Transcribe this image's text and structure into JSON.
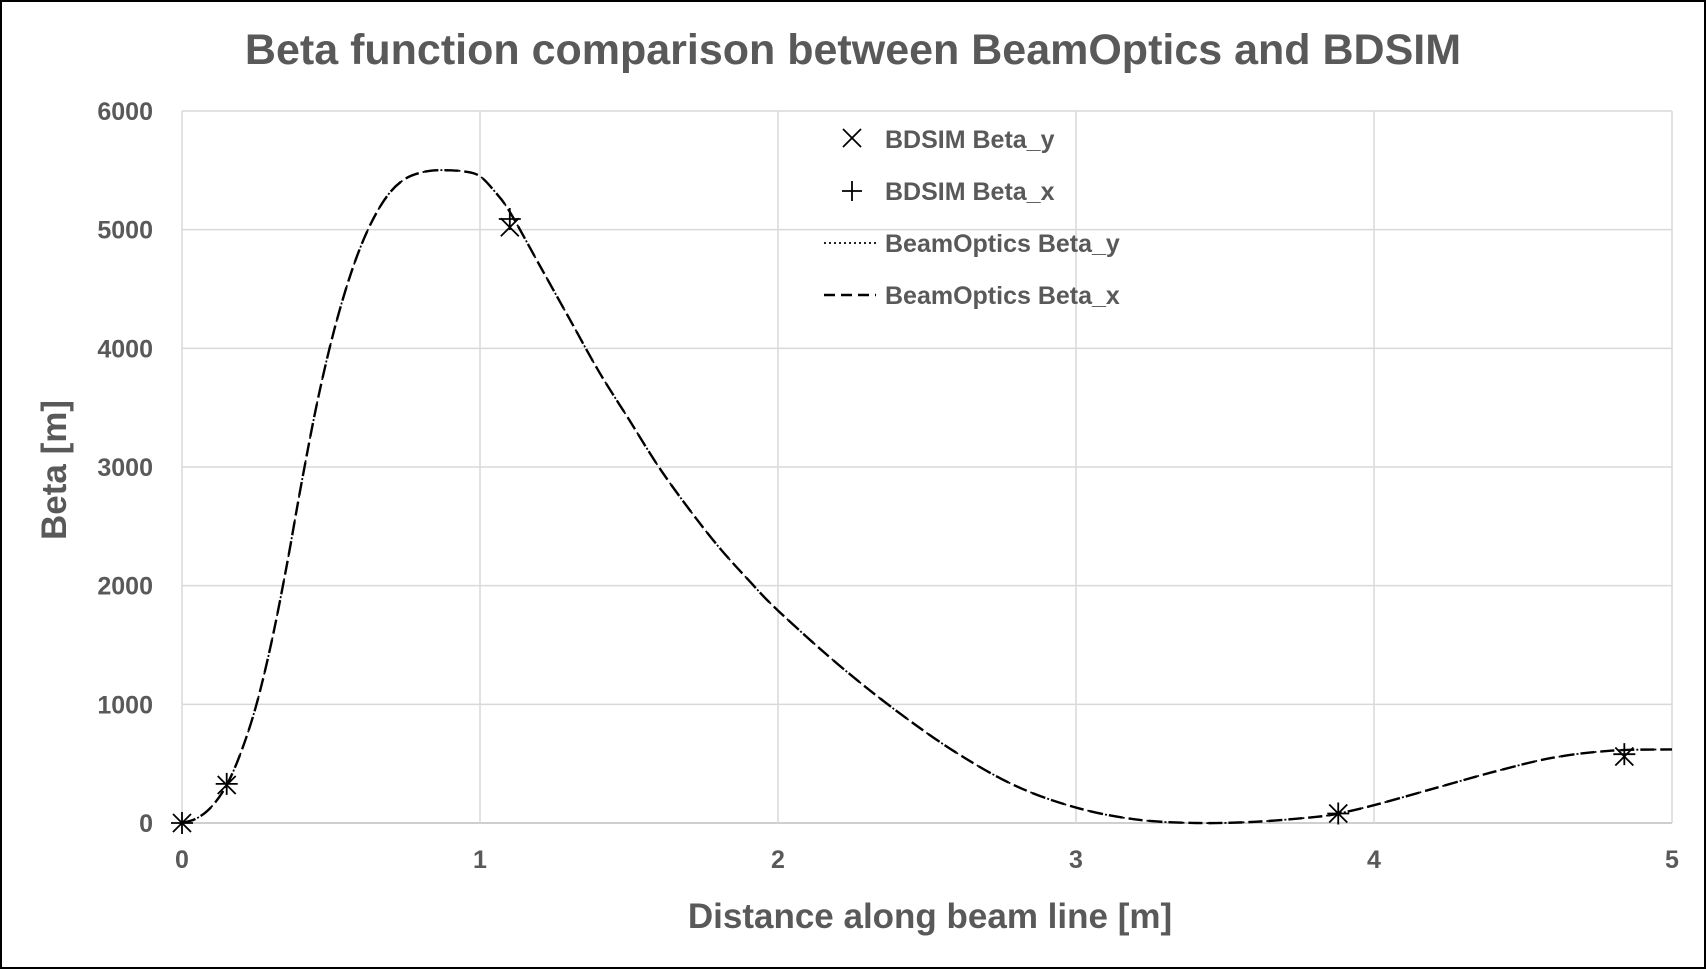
{
  "chart_data": {
    "type": "line",
    "title": "Beta function comparison between BeamOptics and BDSIM",
    "xlabel": "Distance along beam line [m]",
    "ylabel": "Beta [m]",
    "xlim": [
      0,
      5
    ],
    "ylim": [
      0,
      6000
    ],
    "x_ticks": [
      "0",
      "1",
      "2",
      "3",
      "4",
      "5"
    ],
    "y_ticks": [
      "0",
      "1000",
      "2000",
      "3000",
      "4000",
      "5000",
      "6000"
    ],
    "grid": true,
    "legend_position": "top-center",
    "series": [
      {
        "name": "BDSIM Beta_y",
        "kind": "markers",
        "marker": "x",
        "x": [
          0.0,
          0.15,
          1.1,
          3.88,
          4.84
        ],
        "y": [
          0,
          320,
          5020,
          80,
          560
        ]
      },
      {
        "name": "BDSIM Beta_x",
        "kind": "markers",
        "marker": "+",
        "x": [
          0.0,
          0.15,
          1.1,
          3.88,
          4.84
        ],
        "y": [
          0,
          330,
          5090,
          80,
          580
        ]
      },
      {
        "name": "BeamOptics Beta_y",
        "kind": "line",
        "dash": "dotted",
        "x": [
          0,
          0.05,
          0.1,
          0.15,
          0.2,
          0.25,
          0.3,
          0.35,
          0.4,
          0.45,
          0.5,
          0.55,
          0.6,
          0.65,
          0.7,
          0.75,
          0.8,
          0.85,
          0.9,
          0.95,
          1.0,
          1.05,
          1.1,
          1.2,
          1.3,
          1.4,
          1.5,
          1.6,
          1.7,
          1.8,
          1.9,
          2.0,
          2.2,
          2.4,
          2.6,
          2.8,
          3.0,
          3.2,
          3.4,
          3.6,
          3.8,
          3.88,
          4.0,
          4.2,
          4.4,
          4.6,
          4.8,
          5.0
        ],
        "y": [
          0,
          40,
          140,
          320,
          610,
          1000,
          1520,
          2150,
          2850,
          3500,
          4050,
          4500,
          4860,
          5130,
          5320,
          5430,
          5480,
          5500,
          5500,
          5490,
          5450,
          5320,
          5150,
          4700,
          4250,
          3800,
          3400,
          3000,
          2650,
          2330,
          2050,
          1790,
          1340,
          940,
          590,
          310,
          130,
          30,
          0,
          10,
          50,
          80,
          150,
          290,
          430,
          550,
          610,
          620
        ]
      },
      {
        "name": "BeamOptics Beta_x",
        "kind": "line",
        "dash": "dashed",
        "x": [
          0,
          0.05,
          0.1,
          0.15,
          0.2,
          0.25,
          0.3,
          0.35,
          0.4,
          0.45,
          0.5,
          0.55,
          0.6,
          0.65,
          0.7,
          0.75,
          0.8,
          0.85,
          0.9,
          0.95,
          1.0,
          1.05,
          1.1,
          1.2,
          1.3,
          1.4,
          1.5,
          1.6,
          1.7,
          1.8,
          1.9,
          2.0,
          2.2,
          2.4,
          2.6,
          2.8,
          3.0,
          3.2,
          3.4,
          3.6,
          3.8,
          3.88,
          4.0,
          4.2,
          4.4,
          4.6,
          4.8,
          5.0
        ],
        "y": [
          0,
          40,
          140,
          320,
          610,
          1000,
          1520,
          2150,
          2850,
          3500,
          4050,
          4500,
          4860,
          5130,
          5320,
          5430,
          5480,
          5500,
          5500,
          5490,
          5450,
          5320,
          5150,
          4700,
          4250,
          3800,
          3400,
          3000,
          2650,
          2330,
          2050,
          1790,
          1340,
          940,
          590,
          310,
          130,
          30,
          0,
          10,
          50,
          80,
          150,
          290,
          430,
          550,
          610,
          620
        ]
      }
    ]
  }
}
